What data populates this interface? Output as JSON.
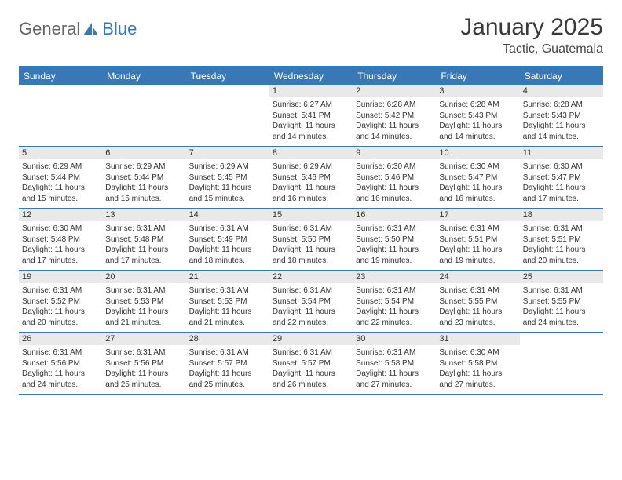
{
  "colors": {
    "brand_blue": "#3a78b5",
    "header_bg": "#3a78b5",
    "header_text": "#ffffff",
    "daynum_bg": "#e9e9e9",
    "body_text": "#333333",
    "page_bg": "#ffffff",
    "logo_gray": "#666666"
  },
  "logo": {
    "part1": "General",
    "part2": "Blue"
  },
  "title": "January 2025",
  "location": "Tactic, Guatemala",
  "weekdays": [
    "Sunday",
    "Monday",
    "Tuesday",
    "Wednesday",
    "Thursday",
    "Friday",
    "Saturday"
  ],
  "weeks": [
    [
      {
        "n": "",
        "sr": "",
        "ss": "",
        "dl": ""
      },
      {
        "n": "",
        "sr": "",
        "ss": "",
        "dl": ""
      },
      {
        "n": "",
        "sr": "",
        "ss": "",
        "dl": ""
      },
      {
        "n": "1",
        "sr": "Sunrise: 6:27 AM",
        "ss": "Sunset: 5:41 PM",
        "dl": "Daylight: 11 hours and 14 minutes."
      },
      {
        "n": "2",
        "sr": "Sunrise: 6:28 AM",
        "ss": "Sunset: 5:42 PM",
        "dl": "Daylight: 11 hours and 14 minutes."
      },
      {
        "n": "3",
        "sr": "Sunrise: 6:28 AM",
        "ss": "Sunset: 5:43 PM",
        "dl": "Daylight: 11 hours and 14 minutes."
      },
      {
        "n": "4",
        "sr": "Sunrise: 6:28 AM",
        "ss": "Sunset: 5:43 PM",
        "dl": "Daylight: 11 hours and 14 minutes."
      }
    ],
    [
      {
        "n": "5",
        "sr": "Sunrise: 6:29 AM",
        "ss": "Sunset: 5:44 PM",
        "dl": "Daylight: 11 hours and 15 minutes."
      },
      {
        "n": "6",
        "sr": "Sunrise: 6:29 AM",
        "ss": "Sunset: 5:44 PM",
        "dl": "Daylight: 11 hours and 15 minutes."
      },
      {
        "n": "7",
        "sr": "Sunrise: 6:29 AM",
        "ss": "Sunset: 5:45 PM",
        "dl": "Daylight: 11 hours and 15 minutes."
      },
      {
        "n": "8",
        "sr": "Sunrise: 6:29 AM",
        "ss": "Sunset: 5:46 PM",
        "dl": "Daylight: 11 hours and 16 minutes."
      },
      {
        "n": "9",
        "sr": "Sunrise: 6:30 AM",
        "ss": "Sunset: 5:46 PM",
        "dl": "Daylight: 11 hours and 16 minutes."
      },
      {
        "n": "10",
        "sr": "Sunrise: 6:30 AM",
        "ss": "Sunset: 5:47 PM",
        "dl": "Daylight: 11 hours and 16 minutes."
      },
      {
        "n": "11",
        "sr": "Sunrise: 6:30 AM",
        "ss": "Sunset: 5:47 PM",
        "dl": "Daylight: 11 hours and 17 minutes."
      }
    ],
    [
      {
        "n": "12",
        "sr": "Sunrise: 6:30 AM",
        "ss": "Sunset: 5:48 PM",
        "dl": "Daylight: 11 hours and 17 minutes."
      },
      {
        "n": "13",
        "sr": "Sunrise: 6:31 AM",
        "ss": "Sunset: 5:48 PM",
        "dl": "Daylight: 11 hours and 17 minutes."
      },
      {
        "n": "14",
        "sr": "Sunrise: 6:31 AM",
        "ss": "Sunset: 5:49 PM",
        "dl": "Daylight: 11 hours and 18 minutes."
      },
      {
        "n": "15",
        "sr": "Sunrise: 6:31 AM",
        "ss": "Sunset: 5:50 PM",
        "dl": "Daylight: 11 hours and 18 minutes."
      },
      {
        "n": "16",
        "sr": "Sunrise: 6:31 AM",
        "ss": "Sunset: 5:50 PM",
        "dl": "Daylight: 11 hours and 19 minutes."
      },
      {
        "n": "17",
        "sr": "Sunrise: 6:31 AM",
        "ss": "Sunset: 5:51 PM",
        "dl": "Daylight: 11 hours and 19 minutes."
      },
      {
        "n": "18",
        "sr": "Sunrise: 6:31 AM",
        "ss": "Sunset: 5:51 PM",
        "dl": "Daylight: 11 hours and 20 minutes."
      }
    ],
    [
      {
        "n": "19",
        "sr": "Sunrise: 6:31 AM",
        "ss": "Sunset: 5:52 PM",
        "dl": "Daylight: 11 hours and 20 minutes."
      },
      {
        "n": "20",
        "sr": "Sunrise: 6:31 AM",
        "ss": "Sunset: 5:53 PM",
        "dl": "Daylight: 11 hours and 21 minutes."
      },
      {
        "n": "21",
        "sr": "Sunrise: 6:31 AM",
        "ss": "Sunset: 5:53 PM",
        "dl": "Daylight: 11 hours and 21 minutes."
      },
      {
        "n": "22",
        "sr": "Sunrise: 6:31 AM",
        "ss": "Sunset: 5:54 PM",
        "dl": "Daylight: 11 hours and 22 minutes."
      },
      {
        "n": "23",
        "sr": "Sunrise: 6:31 AM",
        "ss": "Sunset: 5:54 PM",
        "dl": "Daylight: 11 hours and 22 minutes."
      },
      {
        "n": "24",
        "sr": "Sunrise: 6:31 AM",
        "ss": "Sunset: 5:55 PM",
        "dl": "Daylight: 11 hours and 23 minutes."
      },
      {
        "n": "25",
        "sr": "Sunrise: 6:31 AM",
        "ss": "Sunset: 5:55 PM",
        "dl": "Daylight: 11 hours and 24 minutes."
      }
    ],
    [
      {
        "n": "26",
        "sr": "Sunrise: 6:31 AM",
        "ss": "Sunset: 5:56 PM",
        "dl": "Daylight: 11 hours and 24 minutes."
      },
      {
        "n": "27",
        "sr": "Sunrise: 6:31 AM",
        "ss": "Sunset: 5:56 PM",
        "dl": "Daylight: 11 hours and 25 minutes."
      },
      {
        "n": "28",
        "sr": "Sunrise: 6:31 AM",
        "ss": "Sunset: 5:57 PM",
        "dl": "Daylight: 11 hours and 25 minutes."
      },
      {
        "n": "29",
        "sr": "Sunrise: 6:31 AM",
        "ss": "Sunset: 5:57 PM",
        "dl": "Daylight: 11 hours and 26 minutes."
      },
      {
        "n": "30",
        "sr": "Sunrise: 6:31 AM",
        "ss": "Sunset: 5:58 PM",
        "dl": "Daylight: 11 hours and 27 minutes."
      },
      {
        "n": "31",
        "sr": "Sunrise: 6:30 AM",
        "ss": "Sunset: 5:58 PM",
        "dl": "Daylight: 11 hours and 27 minutes."
      },
      {
        "n": "",
        "sr": "",
        "ss": "",
        "dl": ""
      }
    ]
  ]
}
